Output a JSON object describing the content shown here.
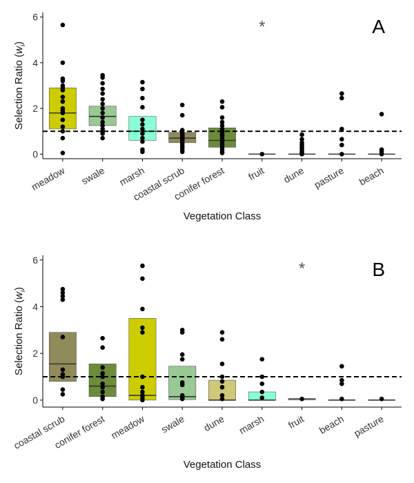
{
  "colors": {
    "reference_line": "#000000",
    "points": "#000000",
    "axis": "#000000",
    "asterisk": "#4d5a5a",
    "meadow": "#cccc00",
    "swale": "#99c994",
    "marsh": "#88ffd8",
    "coastal scrub": "#8f8b5a",
    "conifer forest": "#6c8c3a",
    "dune": "#cfc878",
    "fruit": "#ffffff",
    "pasture": "#ffffff",
    "beach": "#ffffff"
  },
  "chart_data": [
    {
      "type": "box-strip",
      "panel_label": "A",
      "xlabel": "Vegetation Class",
      "ylabel_main": "Selection Ratio (",
      "ylabel_italic": "w",
      "ylabel_sub": "i",
      "ylabel_end": ")",
      "ylim": [
        -0.2,
        6.2
      ],
      "yticks": [
        0,
        2,
        4,
        6
      ],
      "reference_line": 1,
      "asterisk": {
        "mark": "*",
        "category": "fruit",
        "y": 5.7
      },
      "categories": [
        "meadow",
        "swale",
        "marsh",
        "coastal scrub",
        "conifer forest",
        "fruit",
        "dune",
        "pasture",
        "beach"
      ],
      "boxes": [
        {
          "category": "meadow",
          "lower": 1.1,
          "median": 1.8,
          "upper": 2.9
        },
        {
          "category": "swale",
          "lower": 1.25,
          "median": 1.65,
          "upper": 2.1
        },
        {
          "category": "marsh",
          "lower": 0.6,
          "median": 1.0,
          "upper": 1.65
        },
        {
          "category": "coastal scrub",
          "lower": 0.5,
          "median": 0.7,
          "upper": 0.95
        },
        {
          "category": "conifer forest",
          "lower": 0.3,
          "median": 0.6,
          "upper": 1.15
        },
        {
          "category": "fruit",
          "lower": 0.0,
          "median": 0.0,
          "upper": 0.0
        },
        {
          "category": "dune",
          "lower": 0.0,
          "median": 0.0,
          "upper": 0.0
        },
        {
          "category": "pasture",
          "lower": 0.0,
          "median": 0.0,
          "upper": 0.0
        },
        {
          "category": "beach",
          "lower": 0.0,
          "median": 0.0,
          "upper": 0.0
        }
      ],
      "points": [
        {
          "category": "meadow",
          "values": [
            5.65,
            4.0,
            3.3,
            3.2,
            3.0,
            2.9,
            2.8,
            2.5,
            2.3,
            2.0,
            1.9,
            1.8,
            1.5,
            1.2,
            1.0,
            0.7,
            0.05
          ]
        },
        {
          "category": "swale",
          "values": [
            3.45,
            3.35,
            3.1,
            2.85,
            2.65,
            2.4,
            2.2,
            2.0,
            1.8,
            1.6,
            1.4,
            1.25,
            1.1,
            1.0,
            0.9,
            0.7
          ]
        },
        {
          "category": "marsh",
          "values": [
            3.15,
            2.85,
            2.45,
            2.05,
            1.5,
            1.3,
            1.1,
            0.9,
            0.7,
            0.55,
            0.2,
            0.1
          ]
        },
        {
          "category": "coastal scrub",
          "values": [
            2.15,
            1.7,
            1.05,
            0.95,
            0.9,
            0.85,
            0.8,
            0.75,
            0.7,
            0.65,
            0.6,
            0.5,
            0.45,
            0.35,
            0.3,
            0.2,
            0.1
          ]
        },
        {
          "category": "conifer forest",
          "values": [
            2.3,
            2.05,
            1.6,
            1.4,
            1.25,
            1.1,
            1.0,
            0.95,
            0.9,
            0.85,
            0.8,
            0.7,
            0.6,
            0.55,
            0.45,
            0.4,
            0.3,
            0.2,
            0.1,
            0.05
          ]
        },
        {
          "category": "fruit",
          "values": [
            0.0
          ]
        },
        {
          "category": "dune",
          "values": [
            0.85,
            0.65,
            0.5,
            0.4,
            0.3,
            0.2,
            0.1,
            0.05,
            0.0
          ]
        },
        {
          "category": "pasture",
          "values": [
            2.65,
            2.45,
            1.1,
            0.65,
            0.4,
            0.0
          ]
        },
        {
          "category": "beach",
          "values": [
            1.75,
            0.2,
            0.1,
            0.0
          ]
        }
      ]
    },
    {
      "type": "box-strip",
      "panel_label": "B",
      "xlabel": "Vegetation Class",
      "ylabel_main": "Selection Ratio (",
      "ylabel_italic": "w",
      "ylabel_sub": "i",
      "ylabel_end": ")",
      "ylim": [
        -0.3,
        6.2
      ],
      "yticks": [
        0,
        2,
        4,
        6
      ],
      "reference_line": 1,
      "asterisk": {
        "mark": "*",
        "category": "fruit",
        "y": 5.75
      },
      "categories": [
        "coastal scrub",
        "conifer forest",
        "meadow",
        "swale",
        "dune",
        "marsh",
        "fruit",
        "beach",
        "pasture"
      ],
      "boxes": [
        {
          "category": "coastal scrub",
          "lower": 0.8,
          "median": 1.55,
          "upper": 2.9
        },
        {
          "category": "conifer forest",
          "lower": 0.15,
          "median": 0.6,
          "upper": 1.55
        },
        {
          "category": "meadow",
          "lower": 0.0,
          "median": 0.2,
          "upper": 3.5
        },
        {
          "category": "swale",
          "lower": 0.02,
          "median": 0.15,
          "upper": 1.45
        },
        {
          "category": "dune",
          "lower": 0.0,
          "median": 0.0,
          "upper": 0.85
        },
        {
          "category": "marsh",
          "lower": 0.0,
          "median": 0.0,
          "upper": 0.35
        },
        {
          "category": "fruit",
          "lower": 0.0,
          "median": 0.05,
          "upper": 0.05
        },
        {
          "category": "beach",
          "lower": 0.0,
          "median": 0.0,
          "upper": 0.0
        },
        {
          "category": "pasture",
          "lower": 0.0,
          "median": 0.0,
          "upper": 0.0
        }
      ],
      "points": [
        {
          "category": "coastal scrub",
          "values": [
            4.75,
            4.6,
            4.45,
            4.3,
            2.7,
            1.3,
            1.1,
            1.0,
            0.45,
            0.25
          ]
        },
        {
          "category": "conifer forest",
          "values": [
            2.65,
            2.25,
            1.4,
            1.15,
            1.0,
            0.7,
            0.55,
            0.35,
            0.15,
            0.05
          ]
        },
        {
          "category": "meadow",
          "values": [
            5.75,
            5.2,
            3.9,
            3.1,
            2.9,
            1.0,
            0.55,
            0.35,
            0.2,
            0.1,
            0.0
          ]
        },
        {
          "category": "swale",
          "values": [
            3.0,
            2.9,
            1.95,
            1.75,
            0.75,
            0.65,
            0.2,
            0.1,
            0.05
          ]
        },
        {
          "category": "dune",
          "values": [
            2.9,
            2.6,
            1.55,
            1.0,
            0.8,
            0.55,
            0.2,
            0.05
          ]
        },
        {
          "category": "marsh",
          "values": [
            1.75,
            1.0,
            0.7,
            0.35,
            0.1
          ]
        },
        {
          "category": "fruit",
          "values": [
            0.05
          ]
        },
        {
          "category": "beach",
          "values": [
            1.45,
            0.85,
            0.7,
            0.05
          ]
        },
        {
          "category": "pasture",
          "values": [
            0.05
          ]
        }
      ]
    }
  ]
}
